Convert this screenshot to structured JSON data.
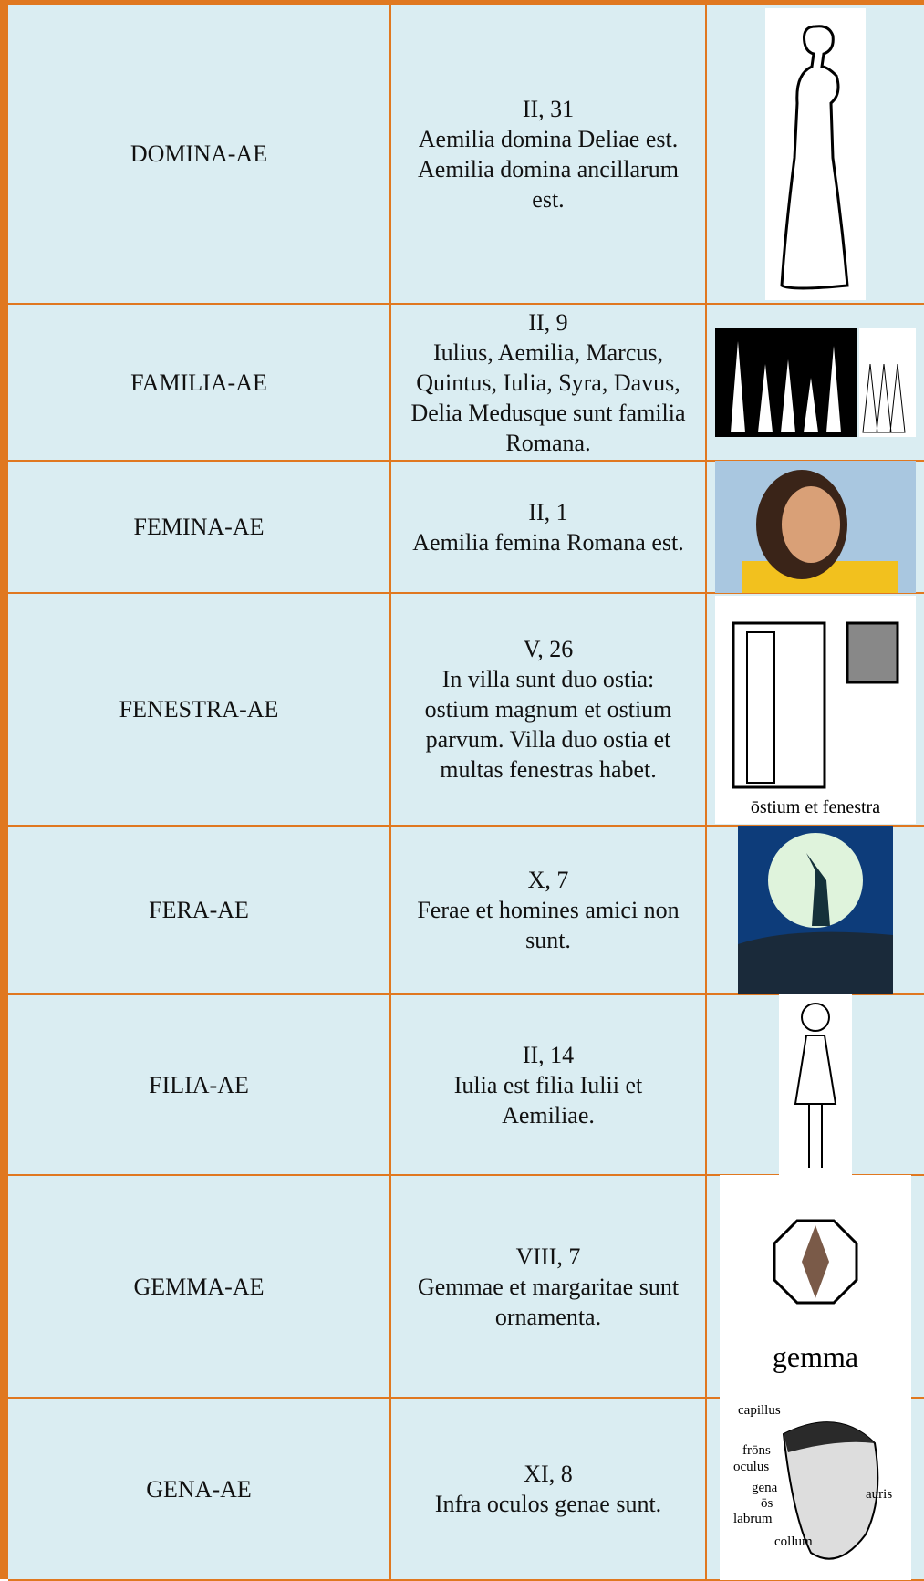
{
  "table": {
    "rows": [
      {
        "word": "DOMINA-AE",
        "reference": "II, 31",
        "sentence": "Aemilia domina Deliae est. Aemilia domina ancillarum est."
      },
      {
        "word": "FAMILIA-AE",
        "reference": "II, 9",
        "sentence": "Iulius, Aemilia, Marcus, Quintus, Iulia, Syra, Davus, Delia Medusque sunt familia Romana."
      },
      {
        "word": "FEMINA-AE",
        "reference": "II, 1",
        "sentence": "Aemilia femina Romana est."
      },
      {
        "word": "FENESTRA-AE",
        "reference": "V, 26",
        "sentence": "In villa sunt duo ostia: ostium magnum et ostium parvum. Villa duo ostia et multas fenestras habet.",
        "image_caption": "ōstium et fenestra"
      },
      {
        "word": "FERA-AE",
        "reference": "X, 7",
        "sentence": "Ferae et homines amici non sunt."
      },
      {
        "word": "FILIA-AE",
        "reference": "II, 14",
        "sentence": "Iulia est filia Iulii et Aemiliae."
      },
      {
        "word": "GEMMA-AE",
        "reference": "VIII, 7",
        "sentence": "Gemmae et margaritae sunt ornamenta.",
        "image_caption": "gemma"
      },
      {
        "word": "GENA-AE",
        "reference": "XI, 8",
        "sentence": "Infra oculos genae sunt.",
        "image_labels": [
          "capillus",
          "frōns",
          "oculus",
          "gena",
          "ōs",
          "labrum",
          "collum",
          "auris"
        ]
      }
    ]
  }
}
